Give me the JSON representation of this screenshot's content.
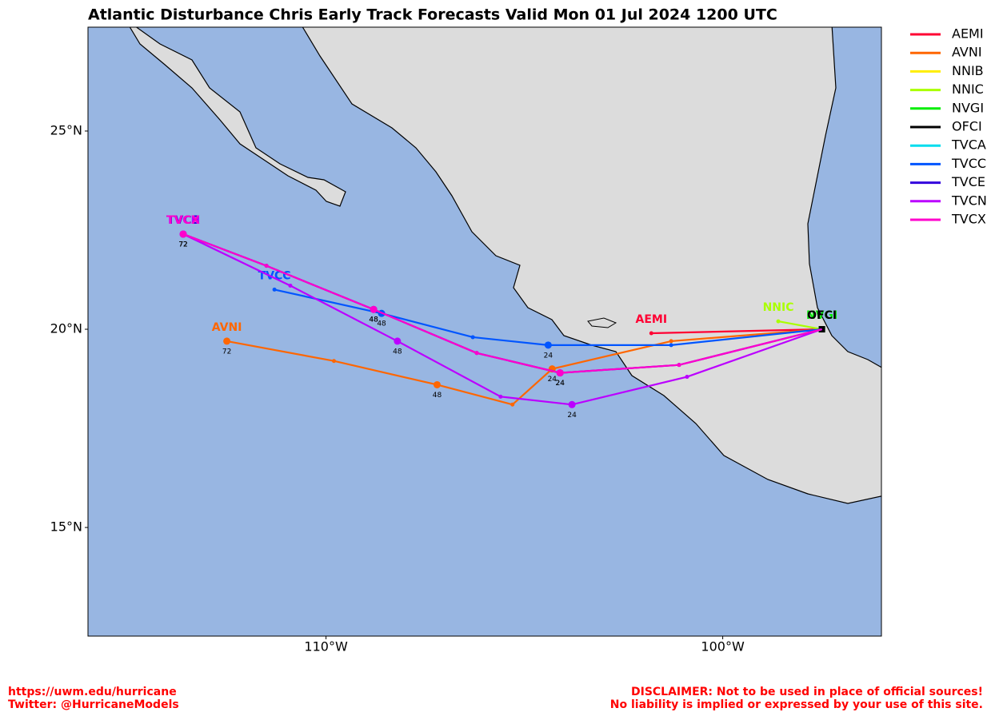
{
  "chart_data": {
    "type": "map",
    "title": "Atlantic Disturbance Chris Early Track Forecasts Valid Mon 01 Jul 2024 1200 UTC",
    "xlim": [
      -116,
      -96
    ],
    "ylim": [
      12.26,
      27.62
    ],
    "xticks": [
      {
        "value": -110,
        "label": "110°W"
      },
      {
        "value": -100,
        "label": "100°W"
      }
    ],
    "yticks": [
      {
        "value": 15,
        "label": "15°N"
      },
      {
        "value": 20,
        "label": "20°N"
      },
      {
        "value": 25,
        "label": "25°N"
      }
    ],
    "series": [
      {
        "name": "AEMI",
        "color": "#ff0033",
        "lon": [
          -97.5,
          -101.8
        ],
        "lat": [
          20.0,
          19.9
        ],
        "tau_labels": [
          null,
          null
        ]
      },
      {
        "name": "AVNI",
        "color": "#ff6600",
        "lon": [
          -97.5,
          -101.3,
          -104.3,
          -105.3,
          -107.2,
          -109.8,
          -112.5
        ],
        "lat": [
          20.0,
          19.7,
          19.0,
          18.1,
          18.6,
          19.2,
          19.7
        ],
        "tau_labels": [
          null,
          null,
          24,
          null,
          48,
          null,
          72
        ]
      },
      {
        "name": "NNIB",
        "color": "#ffee00",
        "lon": [],
        "lat": [],
        "tau_labels": []
      },
      {
        "name": "NNIC",
        "color": "#aaff00",
        "lon": [
          -97.5,
          -98.6
        ],
        "lat": [
          20.0,
          20.2
        ],
        "tau_labels": [
          null,
          null
        ]
      },
      {
        "name": "NVGI",
        "color": "#00ee00",
        "lon": [
          -97.5
        ],
        "lat": [
          20.0
        ],
        "tau_labels": [
          null
        ]
      },
      {
        "name": "OFCI",
        "color": "#000000",
        "lon": [
          -97.5
        ],
        "lat": [
          20.0
        ],
        "tau_labels": [
          null
        ]
      },
      {
        "name": "TVCA",
        "color": "#00ddee",
        "lon": [],
        "lat": [],
        "tau_labels": []
      },
      {
        "name": "TVCC",
        "color": "#0055ff",
        "lon": [
          -97.5,
          -101.3,
          -104.4,
          -106.3,
          -108.6,
          -111.3
        ],
        "lat": [
          20.0,
          19.6,
          19.6,
          19.8,
          20.4,
          21.0
        ],
        "tau_labels": [
          null,
          null,
          24,
          null,
          48,
          null
        ]
      },
      {
        "name": "TVCE",
        "color": "#3300dd",
        "lon": [
          -97.5,
          -101.1,
          -104.1,
          -106.2,
          -108.8,
          -111.5,
          -113.6
        ],
        "lat": [
          20.0,
          19.1,
          18.9,
          19.4,
          20.5,
          21.6,
          22.4
        ],
        "tau_labels": [
          null,
          null,
          24,
          null,
          48,
          null,
          72
        ]
      },
      {
        "name": "TVCN",
        "color": "#bb00ff",
        "lon": [
          -97.5,
          -100.9,
          -103.8,
          -105.6,
          -108.2,
          -110.9,
          -113.6
        ],
        "lat": [
          20.0,
          18.8,
          18.1,
          18.3,
          19.7,
          21.1,
          22.4
        ],
        "tau_labels": [
          null,
          null,
          24,
          null,
          48,
          null,
          72
        ]
      },
      {
        "name": "TVCX",
        "color": "#ff00cc",
        "lon": [
          -97.5,
          -101.1,
          -104.1,
          -106.2,
          -108.8,
          -111.5,
          -113.6
        ],
        "lat": [
          20.0,
          19.1,
          18.9,
          19.4,
          20.5,
          21.6,
          22.4
        ],
        "tau_labels": [
          null,
          null,
          24,
          null,
          48,
          null,
          72
        ]
      }
    ],
    "footer_left": [
      "https://uwm.edu/hurricane",
      "Twitter: @HurricaneModels"
    ],
    "footer_right": [
      "DISCLAIMER: Not to be used in place of official sources!",
      "No liability is implied or expressed by your use of this site."
    ]
  }
}
